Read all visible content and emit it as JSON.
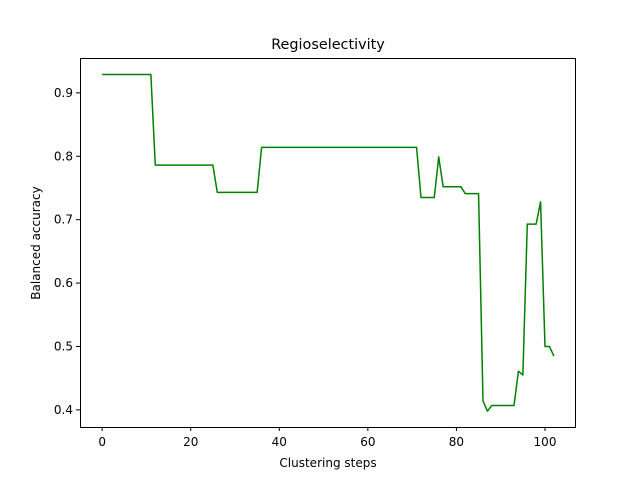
{
  "chart_data": {
    "type": "line",
    "title": "Regioselectivity",
    "xlabel": "Clustering steps",
    "ylabel": "Balanced accuracy",
    "xlim": [
      -5,
      107
    ],
    "ylim": [
      0.373,
      0.955
    ],
    "xticks": [
      0,
      20,
      40,
      60,
      80,
      100
    ],
    "yticks": [
      0.4,
      0.5,
      0.6,
      0.7,
      0.8,
      0.9
    ],
    "grid": false,
    "legend": null,
    "series": [
      {
        "color": "#008000",
        "x": [
          0,
          11,
          12,
          25,
          26,
          35,
          36,
          71,
          72,
          75,
          76,
          77,
          81,
          82,
          85,
          86,
          87,
          88,
          93,
          94,
          95,
          96,
          98,
          99,
          100,
          101,
          102
        ],
        "y": [
          0.929,
          0.929,
          0.786,
          0.786,
          0.743,
          0.743,
          0.814,
          0.814,
          0.735,
          0.735,
          0.799,
          0.752,
          0.752,
          0.741,
          0.741,
          0.414,
          0.398,
          0.407,
          0.407,
          0.461,
          0.455,
          0.693,
          0.693,
          0.728,
          0.5,
          0.5,
          0.485
        ]
      }
    ]
  }
}
